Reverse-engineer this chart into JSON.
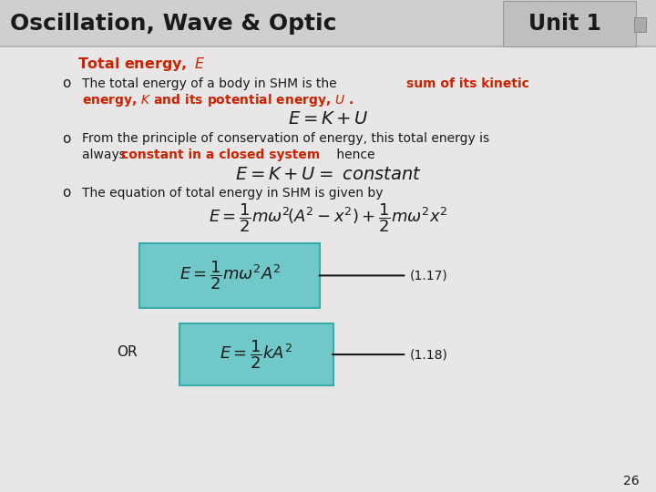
{
  "title_left": "Oscillation, Wave & Optic",
  "title_right": "Unit 1",
  "orange_color": "#cc2200",
  "black_color": "#1a1a1a",
  "teal_color": "#70c8c8",
  "teal_edge": "#3aabab",
  "page_number": "26",
  "bg_top": "#d0cece",
  "bg_body": "#e8e6e6",
  "header_line_color": "#aaaaaa"
}
